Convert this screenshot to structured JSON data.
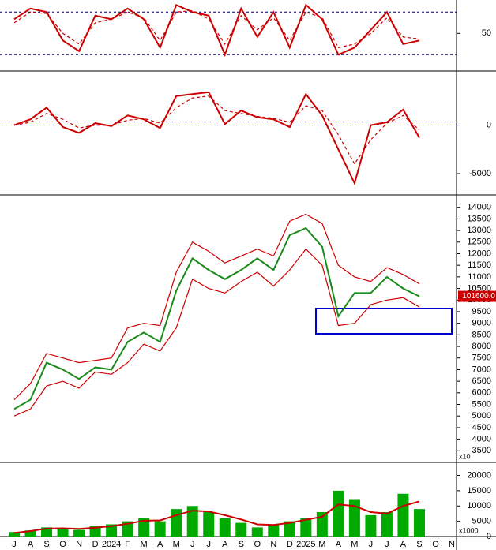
{
  "chart_data": [
    {
      "type": "line",
      "ylim": [
        -3,
        97
      ],
      "yticks": [
        50
      ],
      "ref_lines": [
        80,
        20
      ],
      "series": [
        {
          "color": "#cc0000",
          "values": [
            70,
            85,
            80,
            40,
            25,
            75,
            70,
            85,
            70,
            30,
            90,
            80,
            75,
            20,
            85,
            45,
            80,
            30,
            90,
            70,
            20,
            30,
            55,
            80,
            35,
            40,
            null,
            null
          ]
        },
        {
          "color": "#cc0000",
          "dashed": true,
          "values": [
            65,
            80,
            78,
            50,
            35,
            65,
            70,
            80,
            72,
            40,
            80,
            82,
            70,
            35,
            75,
            55,
            72,
            40,
            80,
            72,
            30,
            35,
            50,
            72,
            45,
            42,
            null,
            null
          ]
        }
      ]
    },
    {
      "type": "line",
      "ylim": [
        -7200,
        5500
      ],
      "yticks": [
        0,
        -5000
      ],
      "ref_lines": [
        0
      ],
      "series": [
        {
          "color": "#cc0000",
          "values": [
            0,
            600,
            1800,
            -200,
            -800,
            200,
            -100,
            1000,
            600,
            -300,
            3000,
            3200,
            3400,
            100,
            1500,
            800,
            600,
            -200,
            3200,
            1000,
            -2500,
            -6000,
            0,
            300,
            1600,
            -1300,
            null,
            null
          ]
        },
        {
          "color": "#cc0000",
          "dashed": true,
          "values": [
            0,
            300,
            1200,
            600,
            -300,
            0,
            0,
            500,
            700,
            200,
            1800,
            2800,
            3000,
            1500,
            1200,
            900,
            700,
            300,
            2000,
            1500,
            -1000,
            -4000,
            -1500,
            200,
            1000,
            -500,
            null,
            null
          ]
        }
      ]
    },
    {
      "type": "line",
      "ylim": [
        3000,
        14500
      ],
      "yticks": [
        3500,
        4000,
        4500,
        5000,
        5500,
        6000,
        6500,
        7000,
        7500,
        8000,
        8500,
        9000,
        9500,
        10000,
        10500,
        11000,
        11500,
        12000,
        12500,
        13000,
        13500,
        14000
      ],
      "last_label": "101600.0",
      "scale_note": "x10",
      "series": [
        {
          "color": "#1a8a1a",
          "values": [
            5300,
            5700,
            7300,
            7000,
            6600,
            7100,
            7000,
            8200,
            8600,
            8200,
            10400,
            11800,
            11300,
            10900,
            11300,
            11800,
            11300,
            12800,
            13100,
            12300,
            9300,
            10300,
            10300,
            11000,
            10500,
            10160,
            null,
            null
          ]
        },
        {
          "color": "#cc0000",
          "values": [
            5700,
            6400,
            7700,
            7500,
            7300,
            7400,
            7500,
            8800,
            9000,
            8900,
            11200,
            12500,
            12100,
            11600,
            11900,
            12200,
            11900,
            13400,
            13700,
            13300,
            11500,
            11000,
            10800,
            11400,
            11100,
            10700,
            null,
            null
          ]
        },
        {
          "color": "#cc0000",
          "values": [
            5000,
            5300,
            6300,
            6500,
            6200,
            6900,
            6800,
            7300,
            8100,
            7800,
            8800,
            10900,
            10500,
            10300,
            10800,
            11200,
            10600,
            11300,
            12200,
            11500,
            8900,
            9000,
            9800,
            10000,
            10100,
            9700,
            null,
            null
          ]
        }
      ]
    },
    {
      "type": "bar",
      "ylim": [
        0,
        24000
      ],
      "yticks": [
        0,
        5000,
        10000,
        15000,
        20000
      ],
      "scale_note": "x1000",
      "categories": [
        "J",
        "A",
        "S",
        "O",
        "N",
        "D",
        "2024",
        "F",
        "M",
        "A",
        "M",
        "J",
        "J",
        "A",
        "S",
        "O",
        "N",
        "D",
        "2025",
        "M",
        "A",
        "M",
        "J",
        "J",
        "A",
        "S",
        "O",
        "N"
      ],
      "color": "#00aa00",
      "values": [
        1500,
        2000,
        3000,
        2500,
        2200,
        3500,
        4000,
        5000,
        6000,
        5000,
        9000,
        10000,
        8000,
        6000,
        4500,
        3000,
        4000,
        5000,
        6000,
        8000,
        15000,
        12000,
        7000,
        8000,
        14000,
        9000,
        null,
        null
      ],
      "ma": {
        "color": "#cc0000",
        "values": [
          1200,
          1800,
          2600,
          2700,
          2500,
          2900,
          3400,
          4200,
          5200,
          5300,
          7000,
          8500,
          8200,
          7000,
          5600,
          4000,
          3800,
          4500,
          5500,
          6500,
          10500,
          10000,
          8000,
          7500,
          10000,
          11500,
          null,
          null
        ]
      }
    }
  ]
}
